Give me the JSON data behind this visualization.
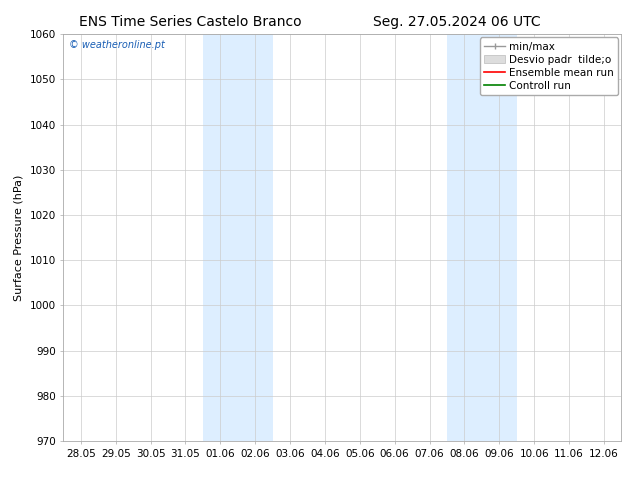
{
  "title_left": "ENS Time Series Castelo Branco",
  "title_right": "Seg. 27.05.2024 06 UTC",
  "ylabel": "Surface Pressure (hPa)",
  "watermark": "© weatheronline.pt",
  "ylim": [
    970,
    1060
  ],
  "yticks": [
    970,
    980,
    990,
    1000,
    1010,
    1020,
    1030,
    1040,
    1050,
    1060
  ],
  "xtick_labels": [
    "28.05",
    "29.05",
    "30.05",
    "31.05",
    "01.06",
    "02.06",
    "03.06",
    "04.06",
    "05.06",
    "06.06",
    "07.06",
    "08.06",
    "09.06",
    "10.06",
    "11.06",
    "12.06"
  ],
  "shaded_bands": [
    {
      "xstart": 4,
      "xend": 6
    },
    {
      "xstart": 11,
      "xend": 13
    }
  ],
  "bg_color": "#ffffff",
  "plot_bg_color": "#ffffff",
  "shaded_color": "#ddeeff",
  "grid_color": "#cccccc",
  "title_fontsize": 10,
  "label_fontsize": 8,
  "tick_fontsize": 7.5,
  "legend_fontsize": 7.5
}
